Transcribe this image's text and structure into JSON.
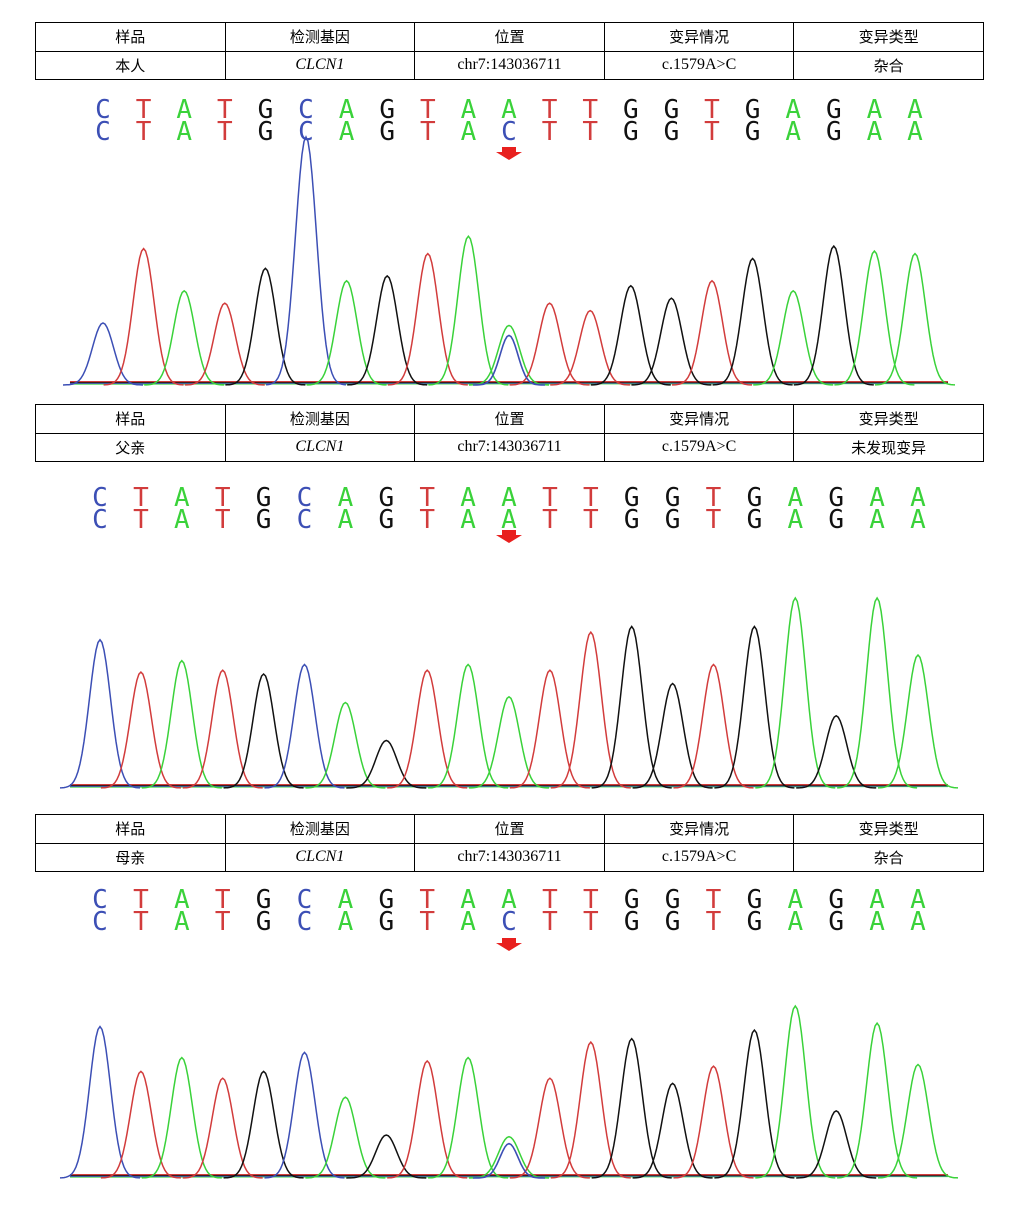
{
  "headers": {
    "sample": "样品",
    "gene": "检测基因",
    "position": "位置",
    "variant": "变异情况",
    "variant_type": "变异类型"
  },
  "panels": [
    {
      "sample": "本人",
      "gene": "CLCN1",
      "position": "chr7:143036711",
      "variant": "c.1579A>C",
      "variant_type": "杂合",
      "top_sequence": [
        "C",
        "T",
        "A",
        "T",
        "G",
        "C",
        "A",
        "G",
        "T",
        "A",
        "A",
        "T",
        "T",
        "G",
        "G",
        "T",
        "G",
        "A",
        "G",
        "A",
        "A"
      ],
      "bottom_sequence": [
        "C",
        "T",
        "A",
        "T",
        "G",
        "C",
        "A",
        "G",
        "T",
        "A",
        "C",
        "T",
        "T",
        "G",
        "G",
        "T",
        "G",
        "A",
        "G",
        "A",
        "A"
      ],
      "peaks": [
        {
          "base": "C",
          "height": 0.25
        },
        {
          "base": "T",
          "height": 0.55
        },
        {
          "base": "A",
          "height": 0.38
        },
        {
          "base": "T",
          "height": 0.33
        },
        {
          "base": "G",
          "height": 0.47
        },
        {
          "base": "C",
          "height": 1.0
        },
        {
          "base": "A",
          "height": 0.42
        },
        {
          "base": "G",
          "height": 0.44
        },
        {
          "base": "T",
          "height": 0.53
        },
        {
          "base": "A",
          "height": 0.6
        },
        {
          "base": "A",
          "height": 0.24
        },
        {
          "base": "T",
          "height": 0.33
        },
        {
          "base": "T",
          "height": 0.3
        },
        {
          "base": "G",
          "height": 0.4
        },
        {
          "base": "G",
          "height": 0.35
        },
        {
          "base": "T",
          "height": 0.42
        },
        {
          "base": "G",
          "height": 0.51
        },
        {
          "base": "A",
          "height": 0.38
        },
        {
          "base": "G",
          "height": 0.56
        },
        {
          "base": "A",
          "height": 0.54
        },
        {
          "base": "A",
          "height": 0.53
        }
      ],
      "secondary_peak": {
        "index": 10,
        "base": "C",
        "height": 0.2
      }
    },
    {
      "sample": "父亲",
      "gene": "CLCN1",
      "position": "chr7:143036711",
      "variant": "c.1579A>C",
      "variant_type": "未发现变异",
      "top_sequence": [
        "C",
        "T",
        "A",
        "T",
        "G",
        "C",
        "A",
        "G",
        "T",
        "A",
        "A",
        "T",
        "T",
        "G",
        "G",
        "T",
        "G",
        "A",
        "G",
        "A",
        "A"
      ],
      "bottom_sequence": [
        "C",
        "T",
        "A",
        "T",
        "G",
        "C",
        "A",
        "G",
        "T",
        "A",
        "A",
        "T",
        "T",
        "G",
        "G",
        "T",
        "G",
        "A",
        "G",
        "A",
        "A"
      ],
      "peaks": [
        {
          "base": "C",
          "height": 0.78
        },
        {
          "base": "T",
          "height": 0.61
        },
        {
          "base": "A",
          "height": 0.67
        },
        {
          "base": "T",
          "height": 0.62
        },
        {
          "base": "G",
          "height": 0.6
        },
        {
          "base": "C",
          "height": 0.65
        },
        {
          "base": "A",
          "height": 0.45
        },
        {
          "base": "G",
          "height": 0.25
        },
        {
          "base": "T",
          "height": 0.62
        },
        {
          "base": "A",
          "height": 0.65
        },
        {
          "base": "A",
          "height": 0.48
        },
        {
          "base": "T",
          "height": 0.62
        },
        {
          "base": "T",
          "height": 0.82
        },
        {
          "base": "G",
          "height": 0.85
        },
        {
          "base": "G",
          "height": 0.55
        },
        {
          "base": "T",
          "height": 0.65
        },
        {
          "base": "G",
          "height": 0.85
        },
        {
          "base": "A",
          "height": 1.0
        },
        {
          "base": "G",
          "height": 0.38
        },
        {
          "base": "A",
          "height": 1.0
        },
        {
          "base": "A",
          "height": 0.7
        }
      ],
      "secondary_peak": null
    },
    {
      "sample": "母亲",
      "gene": "CLCN1",
      "position": "chr7:143036711",
      "variant": "c.1579A>C",
      "variant_type": "杂合",
      "top_sequence": [
        "C",
        "T",
        "A",
        "T",
        "G",
        "C",
        "A",
        "G",
        "T",
        "A",
        "A",
        "T",
        "T",
        "G",
        "G",
        "T",
        "G",
        "A",
        "G",
        "A",
        "A"
      ],
      "bottom_sequence": [
        "C",
        "T",
        "A",
        "T",
        "G",
        "C",
        "A",
        "G",
        "T",
        "A",
        "C",
        "T",
        "T",
        "G",
        "G",
        "T",
        "G",
        "A",
        "G",
        "A",
        "A"
      ],
      "peaks": [
        {
          "base": "C",
          "height": 0.88
        },
        {
          "base": "T",
          "height": 0.62
        },
        {
          "base": "A",
          "height": 0.7
        },
        {
          "base": "T",
          "height": 0.58
        },
        {
          "base": "G",
          "height": 0.62
        },
        {
          "base": "C",
          "height": 0.73
        },
        {
          "base": "A",
          "height": 0.47
        },
        {
          "base": "G",
          "height": 0.25
        },
        {
          "base": "T",
          "height": 0.68
        },
        {
          "base": "A",
          "height": 0.7
        },
        {
          "base": "A",
          "height": 0.24
        },
        {
          "base": "T",
          "height": 0.58
        },
        {
          "base": "T",
          "height": 0.79
        },
        {
          "base": "G",
          "height": 0.81
        },
        {
          "base": "G",
          "height": 0.55
        },
        {
          "base": "T",
          "height": 0.65
        },
        {
          "base": "G",
          "height": 0.86
        },
        {
          "base": "A",
          "height": 1.0
        },
        {
          "base": "G",
          "height": 0.39
        },
        {
          "base": "A",
          "height": 0.9
        },
        {
          "base": "A",
          "height": 0.66
        }
      ],
      "secondary_peak": {
        "index": 10,
        "base": "C",
        "height": 0.2
      }
    }
  ],
  "colors": {
    "A": "#3ad23a",
    "C": "#3c4fb5",
    "G": "#111111",
    "T": "#d23c3c",
    "marker": "#e8201e"
  }
}
